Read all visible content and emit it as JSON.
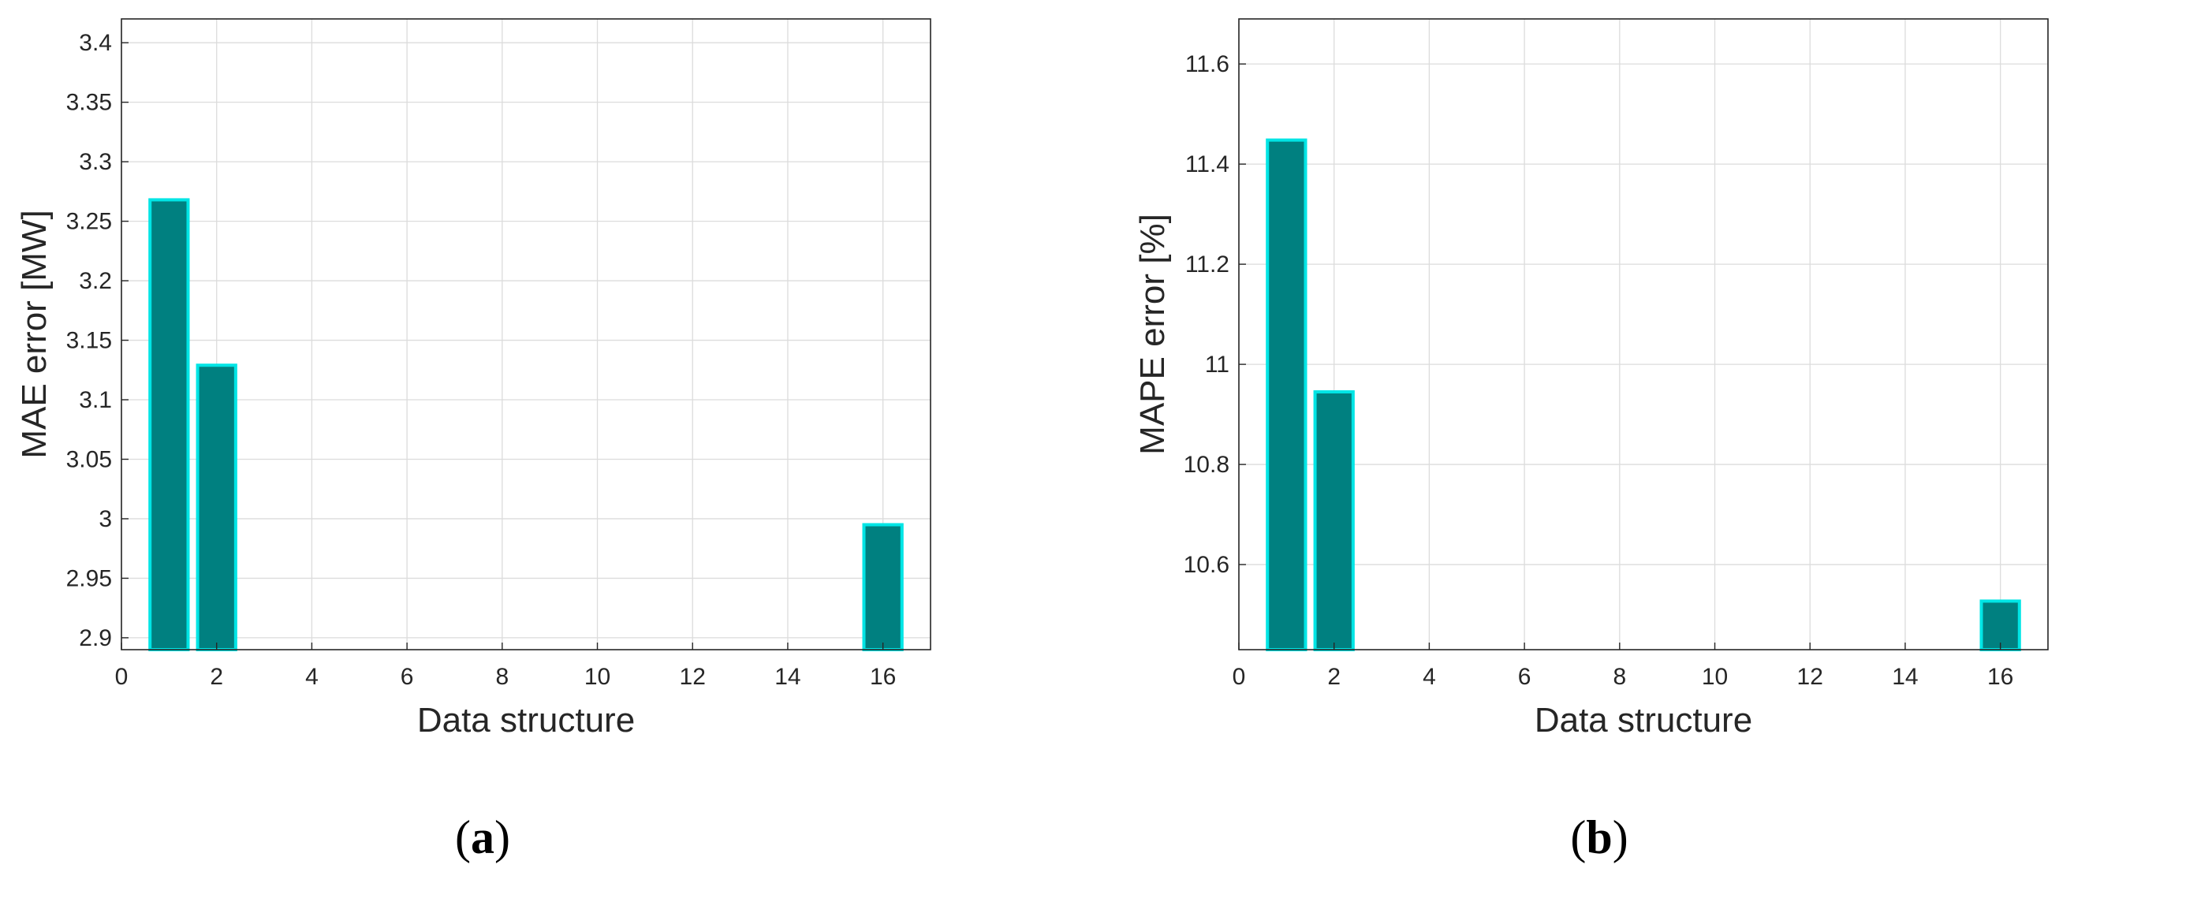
{
  "chart_data": [
    {
      "type": "bar",
      "panel_label": "(a)",
      "panel_letter": "a",
      "xlabel": "Data structure",
      "ylabel": "MAE error [MW]",
      "x": [
        1,
        2,
        16
      ],
      "values": [
        3.268,
        3.129,
        2.995
      ],
      "xlim": [
        0,
        17
      ],
      "ylim": [
        2.89,
        3.42
      ],
      "xticks": [
        "0",
        "2",
        "4",
        "6",
        "8",
        "10",
        "12",
        "14",
        "16"
      ],
      "yticks": [
        "2.9",
        "2.95",
        "3",
        "3.05",
        "3.1",
        "3.15",
        "3.2",
        "3.25",
        "3.3",
        "3.35",
        "3.4"
      ],
      "grid": true,
      "bar_color": "#008080",
      "bar_edge_color": "#00e5e5"
    },
    {
      "type": "bar",
      "panel_label": "(b)",
      "panel_letter": "b",
      "xlabel": "Data structure",
      "ylabel": "MAPE error [%]",
      "x": [
        1,
        2,
        16
      ],
      "values": [
        11.448,
        10.945,
        10.527
      ],
      "xlim": [
        0,
        17
      ],
      "ylim": [
        10.43,
        11.69
      ],
      "xticks": [
        "0",
        "2",
        "4",
        "6",
        "8",
        "10",
        "12",
        "14",
        "16"
      ],
      "yticks": [
        "10.6",
        "10.8",
        "11",
        "11.2",
        "11.4",
        "11.6"
      ],
      "grid": true,
      "bar_color": "#008080",
      "bar_edge_color": "#00e5e5"
    }
  ]
}
